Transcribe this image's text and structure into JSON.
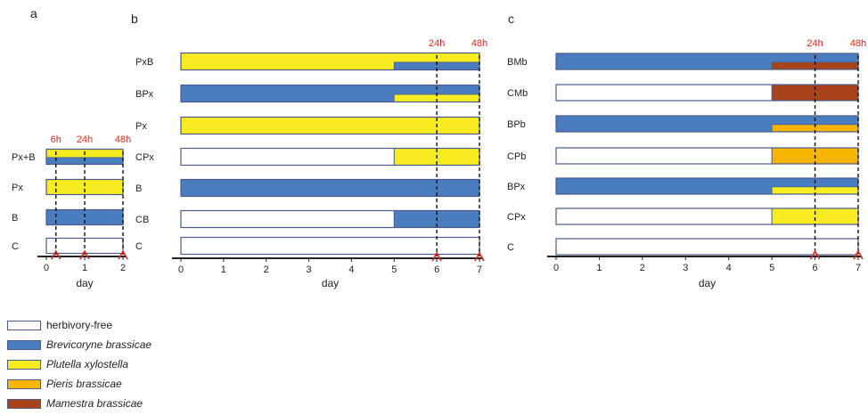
{
  "colors": {
    "herbivory-free": "#ffffff",
    "brevicoryne": "#4a7cc0",
    "plutella": "#f7ec20",
    "pieris": "#f7b500",
    "mamestra": "#a9441a",
    "outline": "#4a5a8a",
    "marker": "#e8251c"
  },
  "panels": [
    {
      "letter": "a",
      "xlabel": "day",
      "ticks": [
        0,
        1,
        2
      ],
      "xlim": [
        0,
        2
      ],
      "markers": [
        {
          "day": 0.25,
          "label": "6h"
        },
        {
          "day": 1,
          "label": "24h"
        },
        {
          "day": 2,
          "label": "48h"
        }
      ],
      "rows": [
        {
          "label": "Px+B",
          "main": "plutella",
          "overlay": "brevicoryne",
          "overlay_start": 0
        },
        {
          "label": "Px",
          "main": "plutella"
        },
        {
          "label": "B",
          "main": "brevicoryne"
        },
        {
          "label": "C",
          "main": "herbivory-free"
        }
      ]
    },
    {
      "letter": "b",
      "xlabel": "day",
      "ticks": [
        0,
        1,
        2,
        3,
        4,
        5,
        6,
        7
      ],
      "xlim": [
        0,
        7
      ],
      "markers": [
        {
          "day": 6,
          "label": "24h"
        },
        {
          "day": 7,
          "label": "48h"
        }
      ],
      "rows": [
        {
          "label": "PxB",
          "main": "plutella",
          "overlay": "brevicoryne",
          "overlay_start": 5
        },
        {
          "label": "BPx",
          "main": "brevicoryne",
          "overlay": "plutella",
          "overlay_start": 5
        },
        {
          "label": "Px",
          "main": "plutella"
        },
        {
          "label": "CPx",
          "main": "herbivory-free",
          "switch": "plutella",
          "switch_start": 5
        },
        {
          "label": "B",
          "main": "brevicoryne"
        },
        {
          "label": "CB",
          "main": "herbivory-free",
          "switch": "brevicoryne",
          "switch_start": 5
        },
        {
          "label": "C",
          "main": "herbivory-free"
        }
      ]
    },
    {
      "letter": "c",
      "xlabel": "day",
      "ticks": [
        0,
        1,
        2,
        3,
        4,
        5,
        6,
        7
      ],
      "xlim": [
        0,
        7
      ],
      "markers": [
        {
          "day": 6,
          "label": "24h"
        },
        {
          "day": 7,
          "label": "48h"
        }
      ],
      "rows": [
        {
          "label": "BMb",
          "main": "brevicoryne",
          "overlay": "mamestra",
          "overlay_start": 5
        },
        {
          "label": "CMb",
          "main": "herbivory-free",
          "switch": "mamestra",
          "switch_start": 5
        },
        {
          "label": "BPb",
          "main": "brevicoryne",
          "overlay": "pieris",
          "overlay_start": 5
        },
        {
          "label": "CPb",
          "main": "herbivory-free",
          "switch": "pieris",
          "switch_start": 5
        },
        {
          "label": "BPx",
          "main": "brevicoryne",
          "overlay": "plutella",
          "overlay_start": 5
        },
        {
          "label": "CPx",
          "main": "herbivory-free",
          "switch": "plutella",
          "switch_start": 5
        },
        {
          "label": "C",
          "main": "herbivory-free"
        }
      ]
    }
  ],
  "legend": [
    {
      "key": "herbivory-free",
      "label": "herbivory-free",
      "italic": false
    },
    {
      "key": "brevicoryne",
      "label": "Brevicoryne brassicae",
      "italic": true
    },
    {
      "key": "plutella",
      "label": "Plutella xylostella",
      "italic": true
    },
    {
      "key": "pieris",
      "label": "Pieris brassicae",
      "italic": true
    },
    {
      "key": "mamestra",
      "label": "Mamestra brassicae",
      "italic": true
    }
  ]
}
